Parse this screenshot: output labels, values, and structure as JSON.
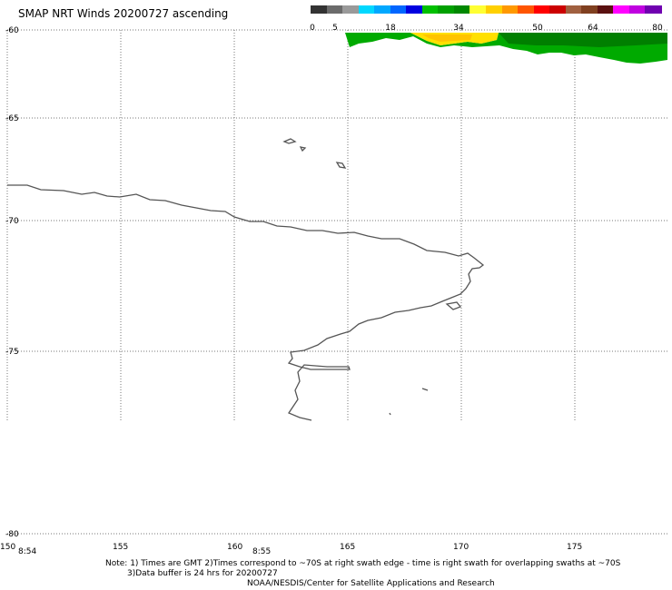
{
  "title": "SMAP NRT Winds 20200727 ascending",
  "colorbar": {
    "labels": [
      "0",
      "5",
      "18",
      "34",
      "50",
      "64",
      "80"
    ],
    "colors": [
      "#333333",
      "#6b6b6b",
      "#9a9a9a",
      "#00d8ff",
      "#00a8ff",
      "#0066ff",
      "#0000e0",
      "#00c000",
      "#00a000",
      "#008800",
      "#ffff33",
      "#ffd000",
      "#ff9900",
      "#ff5500",
      "#ff0000",
      "#cc0000",
      "#a06040",
      "#804020",
      "#5a1010",
      "#ff00ff",
      "#c000e0",
      "#7000b0"
    ]
  },
  "map": {
    "lat_labels": [
      "-60",
      "-65",
      "-70",
      "-75",
      "-80"
    ],
    "lon_labels": [
      "150",
      "155",
      "160",
      "165",
      "170",
      "175"
    ],
    "time_labels": [
      "8:54",
      "8:55"
    ]
  },
  "notes": {
    "line1": "Note: 1) Times are GMT 2)Times correspond to ~70S at right swath edge - time is right swath for overlapping swaths at ~70S",
    "line2": "3)Data buffer is 24 hrs for 20200727",
    "line3": "NOAA/NESDIS/Center for Satellite Applications and Research"
  }
}
